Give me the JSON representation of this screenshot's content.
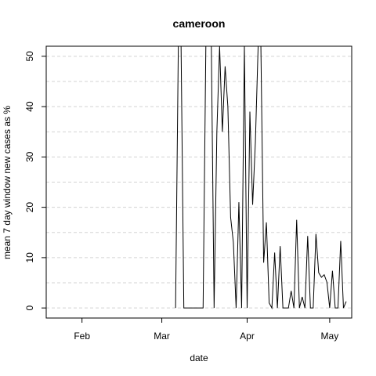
{
  "chart_data": {
    "type": "line",
    "title": "cameroon",
    "xlabel": "date",
    "ylabel": "mean  7  day window new cases as %",
    "x_ticks": [
      {
        "label": "Feb",
        "date": "2020-02-01"
      },
      {
        "label": "Mar",
        "date": "2020-03-01"
      },
      {
        "label": "Apr",
        "date": "2020-04-01"
      },
      {
        "label": "May",
        "date": "2020-05-01"
      }
    ],
    "y_ticks": [
      0,
      10,
      20,
      30,
      40,
      50
    ],
    "xlim": [
      "2020-01-19",
      "2020-05-09"
    ],
    "ylim": [
      -2,
      52
    ],
    "grid": {
      "horizontal": true,
      "vertical": false,
      "style": "dashed"
    },
    "series_color": "#000000",
    "series": [
      {
        "points": [
          [
            "2020-03-06",
            0
          ],
          [
            "2020-03-07",
            52
          ],
          [
            "2020-03-08",
            52
          ],
          [
            "2020-03-09",
            0
          ],
          [
            "2020-03-10",
            0
          ],
          [
            "2020-03-11",
            0
          ],
          [
            "2020-03-12",
            0
          ],
          [
            "2020-03-13",
            0
          ],
          [
            "2020-03-14",
            0
          ],
          [
            "2020-03-15",
            0
          ],
          [
            "2020-03-16",
            0
          ],
          [
            "2020-03-17",
            52
          ],
          [
            "2020-03-18",
            52
          ],
          [
            "2020-03-19",
            52
          ],
          [
            "2020-03-20",
            0
          ],
          [
            "2020-03-21",
            35
          ],
          [
            "2020-03-22",
            52
          ],
          [
            "2020-03-23",
            35
          ],
          [
            "2020-03-24",
            48
          ],
          [
            "2020-03-25",
            40
          ],
          [
            "2020-03-26",
            18
          ],
          [
            "2020-03-27",
            13
          ],
          [
            "2020-03-28",
            0
          ],
          [
            "2020-03-29",
            21
          ],
          [
            "2020-03-30",
            0
          ],
          [
            "2020-03-31",
            52
          ],
          [
            "2020-04-01",
            0
          ],
          [
            "2020-04-02",
            39
          ],
          [
            "2020-04-03",
            20.5
          ],
          [
            "2020-04-04",
            33
          ],
          [
            "2020-04-05",
            52
          ],
          [
            "2020-04-06",
            52
          ],
          [
            "2020-04-07",
            9
          ],
          [
            "2020-04-08",
            17
          ],
          [
            "2020-04-09",
            1
          ],
          [
            "2020-04-10",
            0
          ],
          [
            "2020-04-11",
            11
          ],
          [
            "2020-04-12",
            0
          ],
          [
            "2020-04-13",
            12.3
          ],
          [
            "2020-04-14",
            0
          ],
          [
            "2020-04-15",
            0
          ],
          [
            "2020-04-16",
            0
          ],
          [
            "2020-04-17",
            3.4
          ],
          [
            "2020-04-18",
            0
          ],
          [
            "2020-04-19",
            17.5
          ],
          [
            "2020-04-20",
            0
          ],
          [
            "2020-04-21",
            2.2
          ],
          [
            "2020-04-22",
            0
          ],
          [
            "2020-04-23",
            14.3
          ],
          [
            "2020-04-24",
            0
          ],
          [
            "2020-04-25",
            0
          ],
          [
            "2020-04-26",
            14.7
          ],
          [
            "2020-04-27",
            7
          ],
          [
            "2020-04-28",
            6.1
          ],
          [
            "2020-04-29",
            6.6
          ],
          [
            "2020-04-30",
            5.1
          ],
          [
            "2020-05-01",
            0
          ],
          [
            "2020-05-02",
            7.4
          ],
          [
            "2020-05-03",
            0
          ],
          [
            "2020-05-04",
            0
          ],
          [
            "2020-05-05",
            13.3
          ],
          [
            "2020-05-06",
            0
          ],
          [
            "2020-05-07",
            1.3
          ]
        ]
      }
    ]
  }
}
